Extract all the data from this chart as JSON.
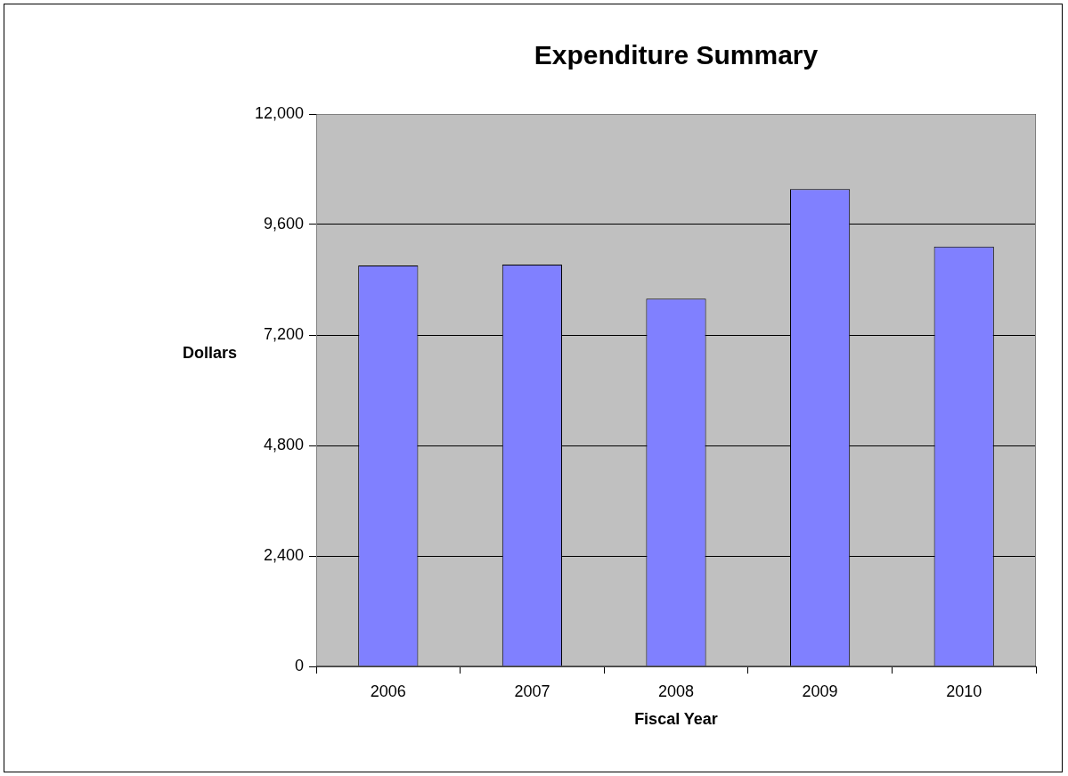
{
  "chart_data": {
    "type": "bar",
    "title": "Expenditure Summary",
    "xlabel": "Fiscal Year",
    "ylabel": "Dollars",
    "categories": [
      "2006",
      "2007",
      "2008",
      "2009",
      "2010"
    ],
    "values": [
      8710,
      8730,
      7990,
      10370,
      9120
    ],
    "color": "#8080ff",
    "ylim": [
      0,
      12000
    ],
    "yticks": [
      {
        "value": 0,
        "label": "0"
      },
      {
        "value": 2400,
        "label": "2,400"
      },
      {
        "value": 4800,
        "label": "4,800"
      },
      {
        "value": 7200,
        "label": "7,200"
      },
      {
        "value": 9600,
        "label": "9,600"
      },
      {
        "value": 12000,
        "label": "12,000"
      }
    ],
    "grid": "y",
    "legend": false
  }
}
